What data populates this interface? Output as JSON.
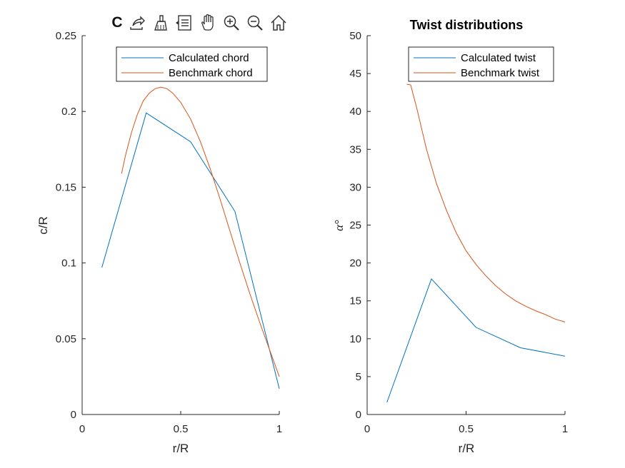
{
  "toolbar": {
    "items": [
      {
        "name": "export-icon"
      },
      {
        "name": "brush-icon"
      },
      {
        "name": "legend-toggle-icon"
      },
      {
        "name": "pan-hand-icon"
      },
      {
        "name": "zoom-in-icon"
      },
      {
        "name": "zoom-out-icon"
      },
      {
        "name": "home-icon"
      }
    ]
  },
  "colors": {
    "series1": "#0072BD",
    "series2": "#D95319",
    "axis": "#262626"
  },
  "chart_data": [
    {
      "type": "line",
      "title": "C",
      "xlabel": "r/R",
      "ylabel": "c/R",
      "xlim": [
        0,
        1
      ],
      "ylim": [
        0,
        0.25
      ],
      "xticks": [
        0,
        0.5,
        1
      ],
      "xtick_labels": [
        "0",
        "0.5",
        "1"
      ],
      "yticks": [
        0,
        0.05,
        0.1,
        0.15,
        0.2,
        0.25
      ],
      "ytick_labels": [
        "0",
        "0.05",
        "0.1",
        "0.15",
        "0.2",
        "0.25"
      ],
      "grid": false,
      "legend_position": "top-center",
      "series": [
        {
          "name": "Calculated chord",
          "x": [
            0.1,
            0.325,
            0.55,
            0.775,
            1.0
          ],
          "y": [
            0.097,
            0.199,
            0.18,
            0.134,
            0.017
          ]
        },
        {
          "name": "Benchmark chord",
          "x": [
            0.2,
            0.22,
            0.25,
            0.28,
            0.31,
            0.34,
            0.37,
            0.4,
            0.43,
            0.46,
            0.5,
            0.55,
            0.6,
            0.65,
            0.7,
            0.75,
            0.8,
            0.85,
            0.9,
            0.95,
            1.0
          ],
          "y": [
            0.159,
            0.171,
            0.186,
            0.198,
            0.207,
            0.212,
            0.215,
            0.216,
            0.215,
            0.212,
            0.206,
            0.195,
            0.18,
            0.162,
            0.142,
            0.121,
            0.1,
            0.08,
            0.061,
            0.043,
            0.025
          ]
        }
      ]
    },
    {
      "type": "line",
      "title": "Twist distributions",
      "xlabel": "r/R",
      "ylabel": "α°",
      "xlim": [
        0,
        1
      ],
      "ylim": [
        0,
        50
      ],
      "xticks": [
        0,
        0.5,
        1
      ],
      "xtick_labels": [
        "0",
        "0.5",
        "1"
      ],
      "yticks": [
        0,
        5,
        10,
        15,
        20,
        25,
        30,
        35,
        40,
        45,
        50
      ],
      "ytick_labels": [
        "0",
        "5",
        "10",
        "15",
        "20",
        "25",
        "30",
        "35",
        "40",
        "45",
        "50"
      ],
      "grid": false,
      "legend_position": "top-center",
      "series": [
        {
          "name": "Calculated twist",
          "x": [
            0.1,
            0.325,
            0.55,
            0.775,
            1.0
          ],
          "y": [
            1.6,
            17.9,
            11.5,
            8.8,
            7.7
          ]
        },
        {
          "name": "Benchmark twist",
          "x": [
            0.2,
            0.22,
            0.25,
            0.3,
            0.35,
            0.4,
            0.45,
            0.5,
            0.55,
            0.6,
            0.65,
            0.7,
            0.75,
            0.8,
            0.85,
            0.9,
            0.95,
            1.0
          ],
          "y": [
            43.6,
            43.5,
            40.5,
            35.0,
            30.5,
            27.0,
            24.0,
            21.6,
            19.8,
            18.3,
            17.0,
            15.9,
            15.0,
            14.3,
            13.7,
            13.2,
            12.6,
            12.2
          ]
        }
      ]
    }
  ]
}
